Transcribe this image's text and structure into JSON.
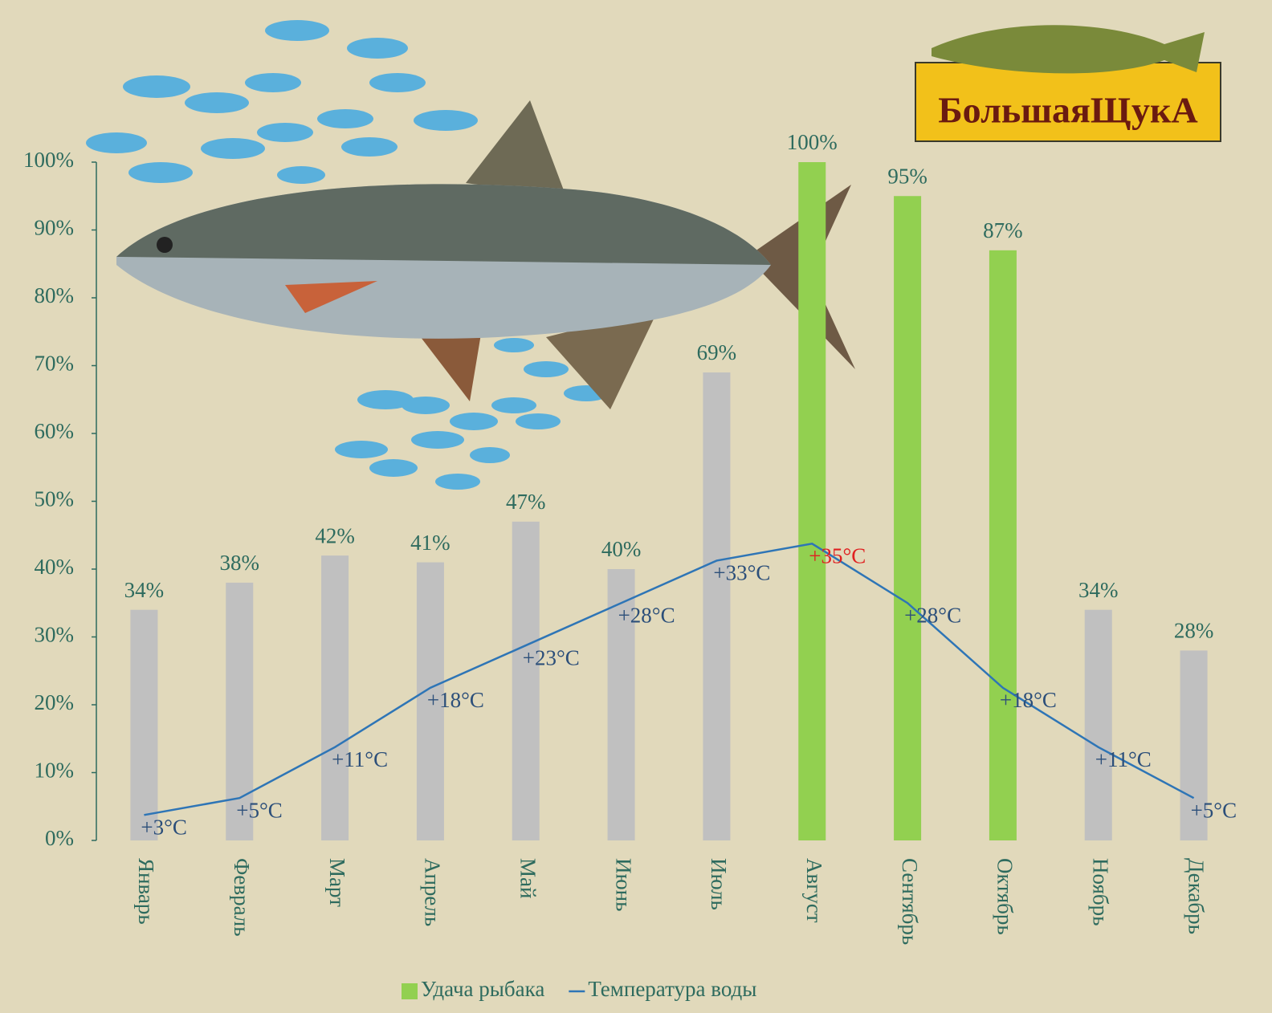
{
  "chart_data": {
    "type": "bar",
    "logo_text": "БольшаяЩукА",
    "categories": [
      "Январь",
      "Февраль",
      "Март",
      "Апрель",
      "Май",
      "Июнь",
      "Июль",
      "Август",
      "Сентябрь",
      "Октябрь",
      "Ноябрь",
      "Декабрь"
    ],
    "series": [
      {
        "name": "Удача рыбака",
        "type": "bar",
        "color": "#92d050",
        "point_colors": [
          "#c0c0c0",
          "#c0c0c0",
          "#c0c0c0",
          "#c0c0c0",
          "#c0c0c0",
          "#c0c0c0",
          "#c0c0c0",
          "#92d050",
          "#92d050",
          "#92d050",
          "#c0c0c0",
          "#c0c0c0"
        ],
        "values": [
          34,
          38,
          42,
          41,
          47,
          40,
          69,
          100,
          95,
          87,
          34,
          28
        ],
        "value_labels": [
          "34%",
          "38%",
          "42%",
          "41%",
          "47%",
          "40%",
          "69%",
          "100%",
          "95%",
          "87%",
          "34%",
          "28%"
        ]
      },
      {
        "name": "Температура воды",
        "type": "line",
        "axis": "y2",
        "color": "#2e75b6",
        "values": [
          3,
          5,
          11,
          18,
          23,
          28,
          33,
          35,
          28,
          18,
          11,
          5
        ],
        "value_labels": [
          "+3°C",
          "+5°C",
          "+11°C",
          "+18°C",
          "+23°C",
          "+28°C",
          "+33°C",
          "+35°C",
          "+28°C",
          "+18°C",
          "+11°C",
          "+5°C"
        ],
        "value_label_colors": [
          "#2c4f7a",
          "#2c4f7a",
          "#2c4f7a",
          "#2c4f7a",
          "#2c4f7a",
          "#2c4f7a",
          "#2c4f7a",
          "#e02020",
          "#2c4f7a",
          "#2c4f7a",
          "#2c4f7a",
          "#2c4f7a"
        ]
      }
    ],
    "ylim": [
      0,
      100
    ],
    "yticks": [
      {
        "value": 0,
        "label": "0%"
      },
      {
        "value": 10,
        "label": "10%"
      },
      {
        "value": 20,
        "label": "20%"
      },
      {
        "value": 30,
        "label": "30%"
      },
      {
        "value": 40,
        "label": "40%"
      },
      {
        "value": 50,
        "label": "50%"
      },
      {
        "value": 60,
        "label": "60%"
      },
      {
        "value": 70,
        "label": "70%"
      },
      {
        "value": 80,
        "label": "80%"
      },
      {
        "value": 90,
        "label": "90%"
      },
      {
        "value": 100,
        "label": "100%"
      }
    ],
    "y2lim": [
      0,
      80
    ],
    "grid": false,
    "legend": "bottom"
  }
}
